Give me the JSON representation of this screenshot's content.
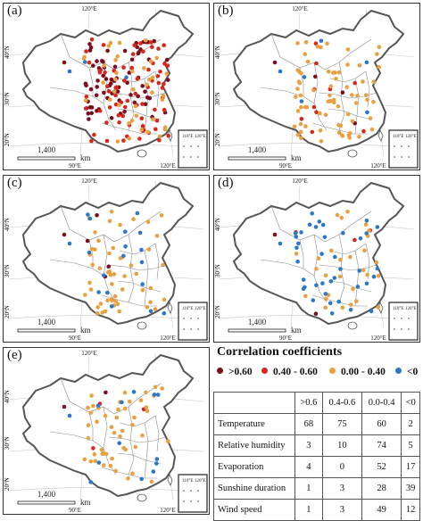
{
  "panels": [
    {
      "id": "a",
      "label": "(a)"
    },
    {
      "id": "b",
      "label": "(b)"
    },
    {
      "id": "c",
      "label": "(c)"
    },
    {
      "id": "d",
      "label": "(d)"
    },
    {
      "id": "e",
      "label": "(e)"
    }
  ],
  "map_text": {
    "lon_labels": [
      "90°E",
      "120°E"
    ],
    "lat_labels": [
      "20°N",
      "30°N",
      "40°N"
    ],
    "scale_value": "1,400",
    "scale_unit": "km",
    "inset_lon": [
      "110°E",
      "120°E"
    ]
  },
  "legend": {
    "title": "Correlation coefficients",
    "items": [
      {
        "label": ">0.60",
        "color": "#7a0e1e"
      },
      {
        "label": "0.40 - 0.60",
        "color": "#d9261c"
      },
      {
        "label": "0.00 - 0.40",
        "color": "#e8a040"
      },
      {
        "label": "<0",
        "color": "#2b78c9"
      }
    ]
  },
  "table": {
    "headers": [
      "",
      ">0.6",
      "0.4-0.6",
      "0.0-0.4",
      "<0"
    ],
    "rows": [
      {
        "name": "Temperature",
        "values": [
          "68",
          "75",
          "60",
          "2"
        ]
      },
      {
        "name": "Relative humidity",
        "values": [
          "3",
          "10",
          "74",
          "5"
        ]
      },
      {
        "name": "Evaporation",
        "values": [
          "4",
          "0",
          "52",
          "17"
        ]
      },
      {
        "name": "Sunshine duration",
        "values": [
          "1",
          "3",
          "28",
          "39"
        ]
      },
      {
        "name": "Wind speed",
        "values": [
          "1",
          "3",
          "49",
          "12"
        ]
      }
    ]
  }
}
